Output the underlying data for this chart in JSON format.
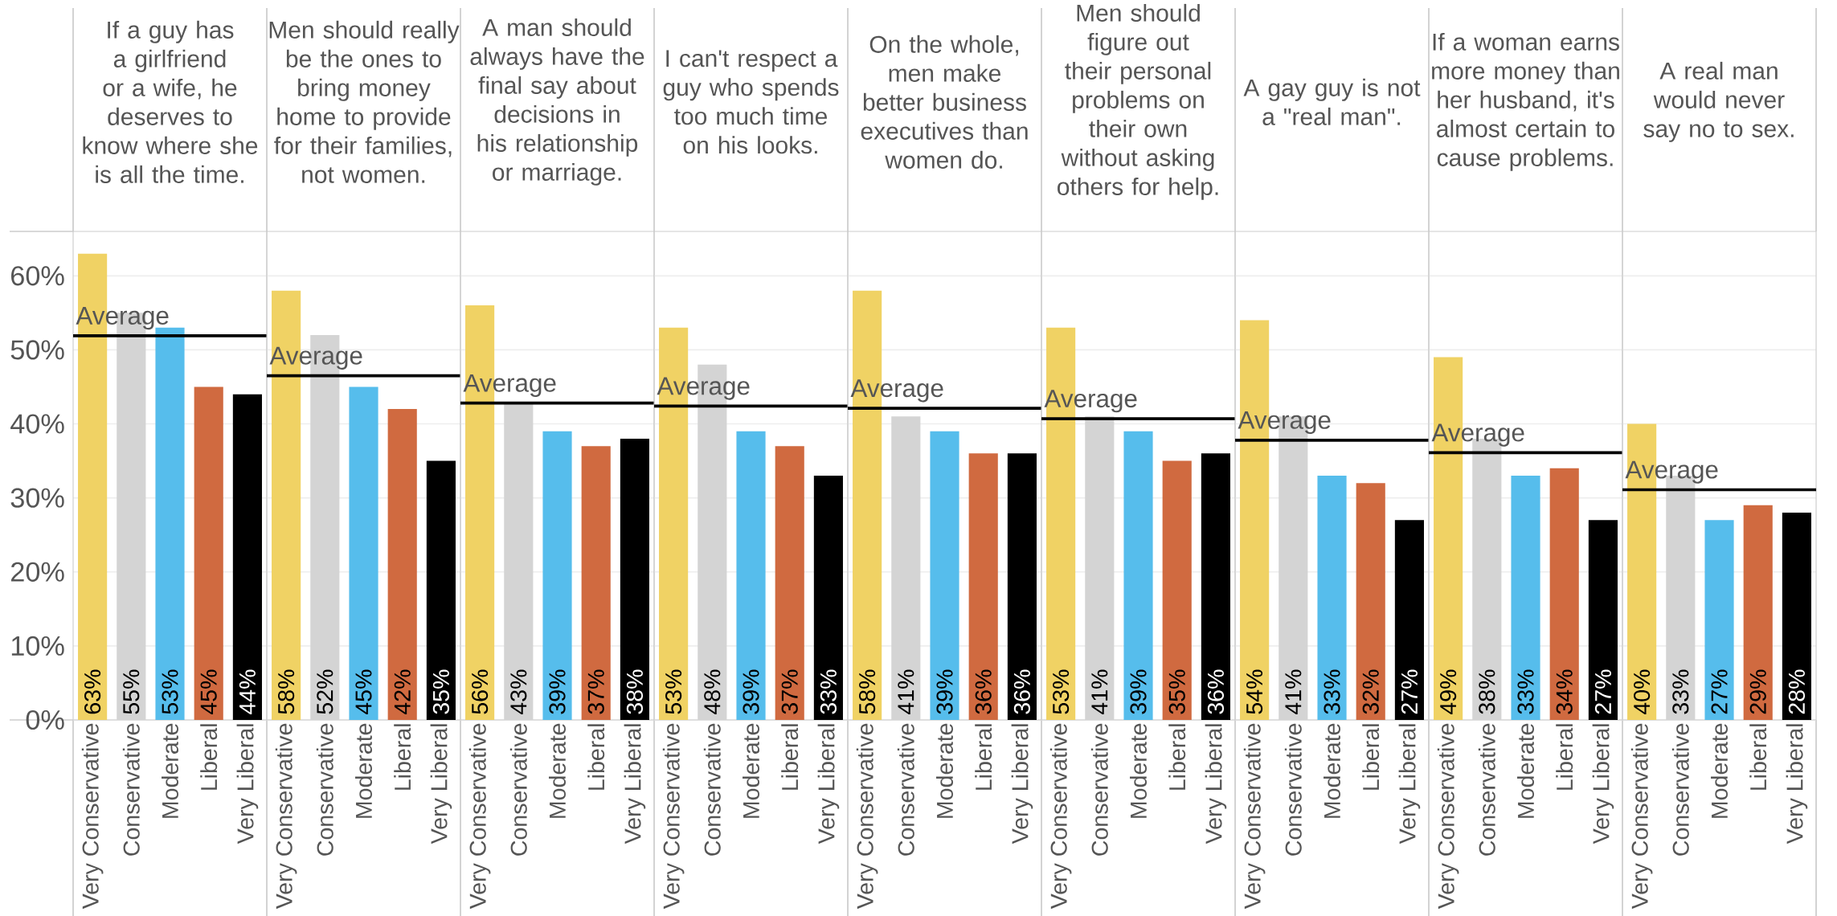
{
  "chart_data": [
    {
      "type": "bar",
      "title": "If a guy has a girlfriend or a wife, he deserves to know where she is all the time.",
      "categories": [
        "Very Conservative",
        "Conservative",
        "Moderate",
        "Liberal",
        "Very Liberal"
      ],
      "values": [
        63,
        55,
        53,
        45,
        44
      ],
      "value_labels": [
        "63%",
        "55%",
        "53%",
        "45%",
        "44%"
      ],
      "colors": [
        "#f0d264",
        "#d4d4d4",
        "#56bdec",
        "#d06a40",
        "#000000"
      ],
      "ref_lines": [
        {
          "axis": "y",
          "value": 51.9,
          "label": "Average"
        }
      ],
      "ylim": [
        0,
        66
      ],
      "yticks": [
        {
          "value": 0,
          "label": "0%"
        },
        {
          "value": 10,
          "label": "10%"
        },
        {
          "value": 20,
          "label": "20%"
        },
        {
          "value": 30,
          "label": "30%"
        },
        {
          "value": 40,
          "label": "40%"
        },
        {
          "value": 50,
          "label": "50%"
        },
        {
          "value": 60,
          "label": "60%"
        }
      ],
      "grid": "y"
    },
    {
      "type": "bar",
      "title": "Men should really be the ones to bring money home to provide for their families, not women.",
      "categories": [
        "Very Conservative",
        "Conservative",
        "Moderate",
        "Liberal",
        "Very Liberal"
      ],
      "values": [
        58,
        52,
        45,
        42,
        35
      ],
      "value_labels": [
        "58%",
        "52%",
        "45%",
        "42%",
        "35%"
      ],
      "colors": [
        "#f0d264",
        "#d4d4d4",
        "#56bdec",
        "#d06a40",
        "#000000"
      ],
      "ref_lines": [
        {
          "axis": "y",
          "value": 46.5,
          "label": "Average"
        }
      ],
      "ylim": [
        0,
        66
      ],
      "yticks": [
        {
          "value": 0,
          "label": null
        },
        {
          "value": 10,
          "label": null
        },
        {
          "value": 20,
          "label": null
        },
        {
          "value": 30,
          "label": null
        },
        {
          "value": 40,
          "label": null
        },
        {
          "value": 50,
          "label": null
        },
        {
          "value": 60,
          "label": null
        }
      ],
      "grid": "y",
      "tick_labels": "x"
    },
    {
      "type": "bar",
      "title": "A man should always have the final say about decisions in his relationship or marriage.",
      "categories": [
        "Very Conservative",
        "Conservative",
        "Moderate",
        "Liberal",
        "Very Liberal"
      ],
      "values": [
        56,
        43,
        39,
        37,
        38
      ],
      "value_labels": [
        "56%",
        "43%",
        "39%",
        "37%",
        "38%"
      ],
      "colors": [
        "#f0d264",
        "#d4d4d4",
        "#56bdec",
        "#d06a40",
        "#000000"
      ],
      "ref_lines": [
        {
          "axis": "y",
          "value": 42.8,
          "label": "Average"
        }
      ],
      "ylim": [
        0,
        66
      ],
      "yticks": [
        {
          "value": 0,
          "label": null
        },
        {
          "value": 10,
          "label": null
        },
        {
          "value": 20,
          "label": null
        },
        {
          "value": 30,
          "label": null
        },
        {
          "value": 40,
          "label": null
        },
        {
          "value": 50,
          "label": null
        },
        {
          "value": 60,
          "label": null
        }
      ],
      "grid": "y",
      "tick_labels": "x"
    },
    {
      "type": "bar",
      "title": "I can't respect a guy who spends too much time on his looks.",
      "categories": [
        "Very Conservative",
        "Conservative",
        "Moderate",
        "Liberal",
        "Very Liberal"
      ],
      "values": [
        53,
        48,
        39,
        37,
        33
      ],
      "value_labels": [
        "53%",
        "48%",
        "39%",
        "37%",
        "33%"
      ],
      "colors": [
        "#f0d264",
        "#d4d4d4",
        "#56bdec",
        "#d06a40",
        "#000000"
      ],
      "ref_lines": [
        {
          "axis": "y",
          "value": 42.4,
          "label": "Average"
        }
      ],
      "ylim": [
        0,
        66
      ],
      "yticks": [
        {
          "value": 0,
          "label": null
        },
        {
          "value": 10,
          "label": null
        },
        {
          "value": 20,
          "label": null
        },
        {
          "value": 30,
          "label": null
        },
        {
          "value": 40,
          "label": null
        },
        {
          "value": 50,
          "label": null
        },
        {
          "value": 60,
          "label": null
        }
      ],
      "grid": "y",
      "tick_labels": "x"
    },
    {
      "type": "bar",
      "title": "On the whole, men make better business executives than women do.",
      "categories": [
        "Very Conservative",
        "Conservative",
        "Moderate",
        "Liberal",
        "Very Liberal"
      ],
      "values": [
        58,
        41,
        39,
        36,
        36
      ],
      "value_labels": [
        "58%",
        "41%",
        "39%",
        "36%",
        "36%"
      ],
      "colors": [
        "#f0d264",
        "#d4d4d4",
        "#56bdec",
        "#d06a40",
        "#000000"
      ],
      "ref_lines": [
        {
          "axis": "y",
          "value": 42.1,
          "label": "Average"
        }
      ],
      "ylim": [
        0,
        66
      ],
      "yticks": [
        {
          "value": 0,
          "label": null
        },
        {
          "value": 10,
          "label": null
        },
        {
          "value": 20,
          "label": null
        },
        {
          "value": 30,
          "label": null
        },
        {
          "value": 40,
          "label": null
        },
        {
          "value": 50,
          "label": null
        },
        {
          "value": 60,
          "label": null
        }
      ],
      "grid": "y",
      "tick_labels": "x"
    },
    {
      "type": "bar",
      "title": "Men should figure out their personal problems on their own without asking others for help.",
      "categories": [
        "Very Conservative",
        "Conservative",
        "Moderate",
        "Liberal",
        "Very Liberal"
      ],
      "values": [
        53,
        41,
        39,
        35,
        36
      ],
      "value_labels": [
        "53%",
        "41%",
        "39%",
        "35%",
        "36%"
      ],
      "colors": [
        "#f0d264",
        "#d4d4d4",
        "#56bdec",
        "#d06a40",
        "#000000"
      ],
      "ref_lines": [
        {
          "axis": "y",
          "value": 40.7,
          "label": "Average"
        }
      ],
      "ylim": [
        0,
        66
      ],
      "yticks": [
        {
          "value": 0,
          "label": null
        },
        {
          "value": 10,
          "label": null
        },
        {
          "value": 20,
          "label": null
        },
        {
          "value": 30,
          "label": null
        },
        {
          "value": 40,
          "label": null
        },
        {
          "value": 50,
          "label": null
        },
        {
          "value": 60,
          "label": null
        }
      ],
      "grid": "y",
      "tick_labels": "x"
    },
    {
      "type": "bar",
      "title": "A gay guy is not a \"real man\".",
      "categories": [
        "Very Conservative",
        "Conservative",
        "Moderate",
        "Liberal",
        "Very Liberal"
      ],
      "values": [
        54,
        41,
        33,
        32,
        27
      ],
      "value_labels": [
        "54%",
        "41%",
        "33%",
        "32%",
        "27%"
      ],
      "colors": [
        "#f0d264",
        "#d4d4d4",
        "#56bdec",
        "#d06a40",
        "#000000"
      ],
      "ref_lines": [
        {
          "axis": "y",
          "value": 37.8,
          "label": "Average"
        }
      ],
      "ylim": [
        0,
        66
      ],
      "yticks": [
        {
          "value": 0,
          "label": null
        },
        {
          "value": 10,
          "label": null
        },
        {
          "value": 20,
          "label": null
        },
        {
          "value": 30,
          "label": null
        },
        {
          "value": 40,
          "label": null
        },
        {
          "value": 50,
          "label": null
        },
        {
          "value": 60,
          "label": null
        }
      ],
      "grid": "y",
      "tick_labels": "x"
    },
    {
      "type": "bar",
      "title": "If a woman earns more money than her husband, it's almost certain to cause problems.",
      "categories": [
        "Very Conservative",
        "Conservative",
        "Moderate",
        "Liberal",
        "Very Liberal"
      ],
      "values": [
        49,
        38,
        33,
        34,
        27
      ],
      "value_labels": [
        "49%",
        "38%",
        "33%",
        "34%",
        "27%"
      ],
      "colors": [
        "#f0d264",
        "#d4d4d4",
        "#56bdec",
        "#d06a40",
        "#000000"
      ],
      "ref_lines": [
        {
          "axis": "y",
          "value": 36.1,
          "label": "Average"
        }
      ],
      "ylim": [
        0,
        66
      ],
      "yticks": [
        {
          "value": 0,
          "label": null
        },
        {
          "value": 10,
          "label": null
        },
        {
          "value": 20,
          "label": null
        },
        {
          "value": 30,
          "label": null
        },
        {
          "value": 40,
          "label": null
        },
        {
          "value": 50,
          "label": null
        },
        {
          "value": 60,
          "label": null
        }
      ],
      "grid": "y",
      "tick_labels": "x"
    },
    {
      "type": "bar",
      "title": "A real man would never say no to sex.",
      "categories": [
        "Very Conservative",
        "Conservative",
        "Moderate",
        "Liberal",
        "Very Liberal"
      ],
      "values": [
        40,
        33,
        27,
        29,
        28
      ],
      "value_labels": [
        "40%",
        "33%",
        "27%",
        "29%",
        "28%"
      ],
      "colors": [
        "#f0d264",
        "#d4d4d4",
        "#56bdec",
        "#d06a40",
        "#000000"
      ],
      "ref_lines": [
        {
          "axis": "y",
          "value": 31.1,
          "label": "Average"
        }
      ],
      "ylim": [
        0,
        66
      ],
      "yticks": [
        {
          "value": 0,
          "label": null
        },
        {
          "value": 10,
          "label": null
        },
        {
          "value": 20,
          "label": null
        },
        {
          "value": 30,
          "label": null
        },
        {
          "value": 40,
          "label": null
        },
        {
          "value": 50,
          "label": null
        },
        {
          "value": 60,
          "label": null
        }
      ],
      "grid": "y",
      "tick_labels": "x"
    }
  ]
}
